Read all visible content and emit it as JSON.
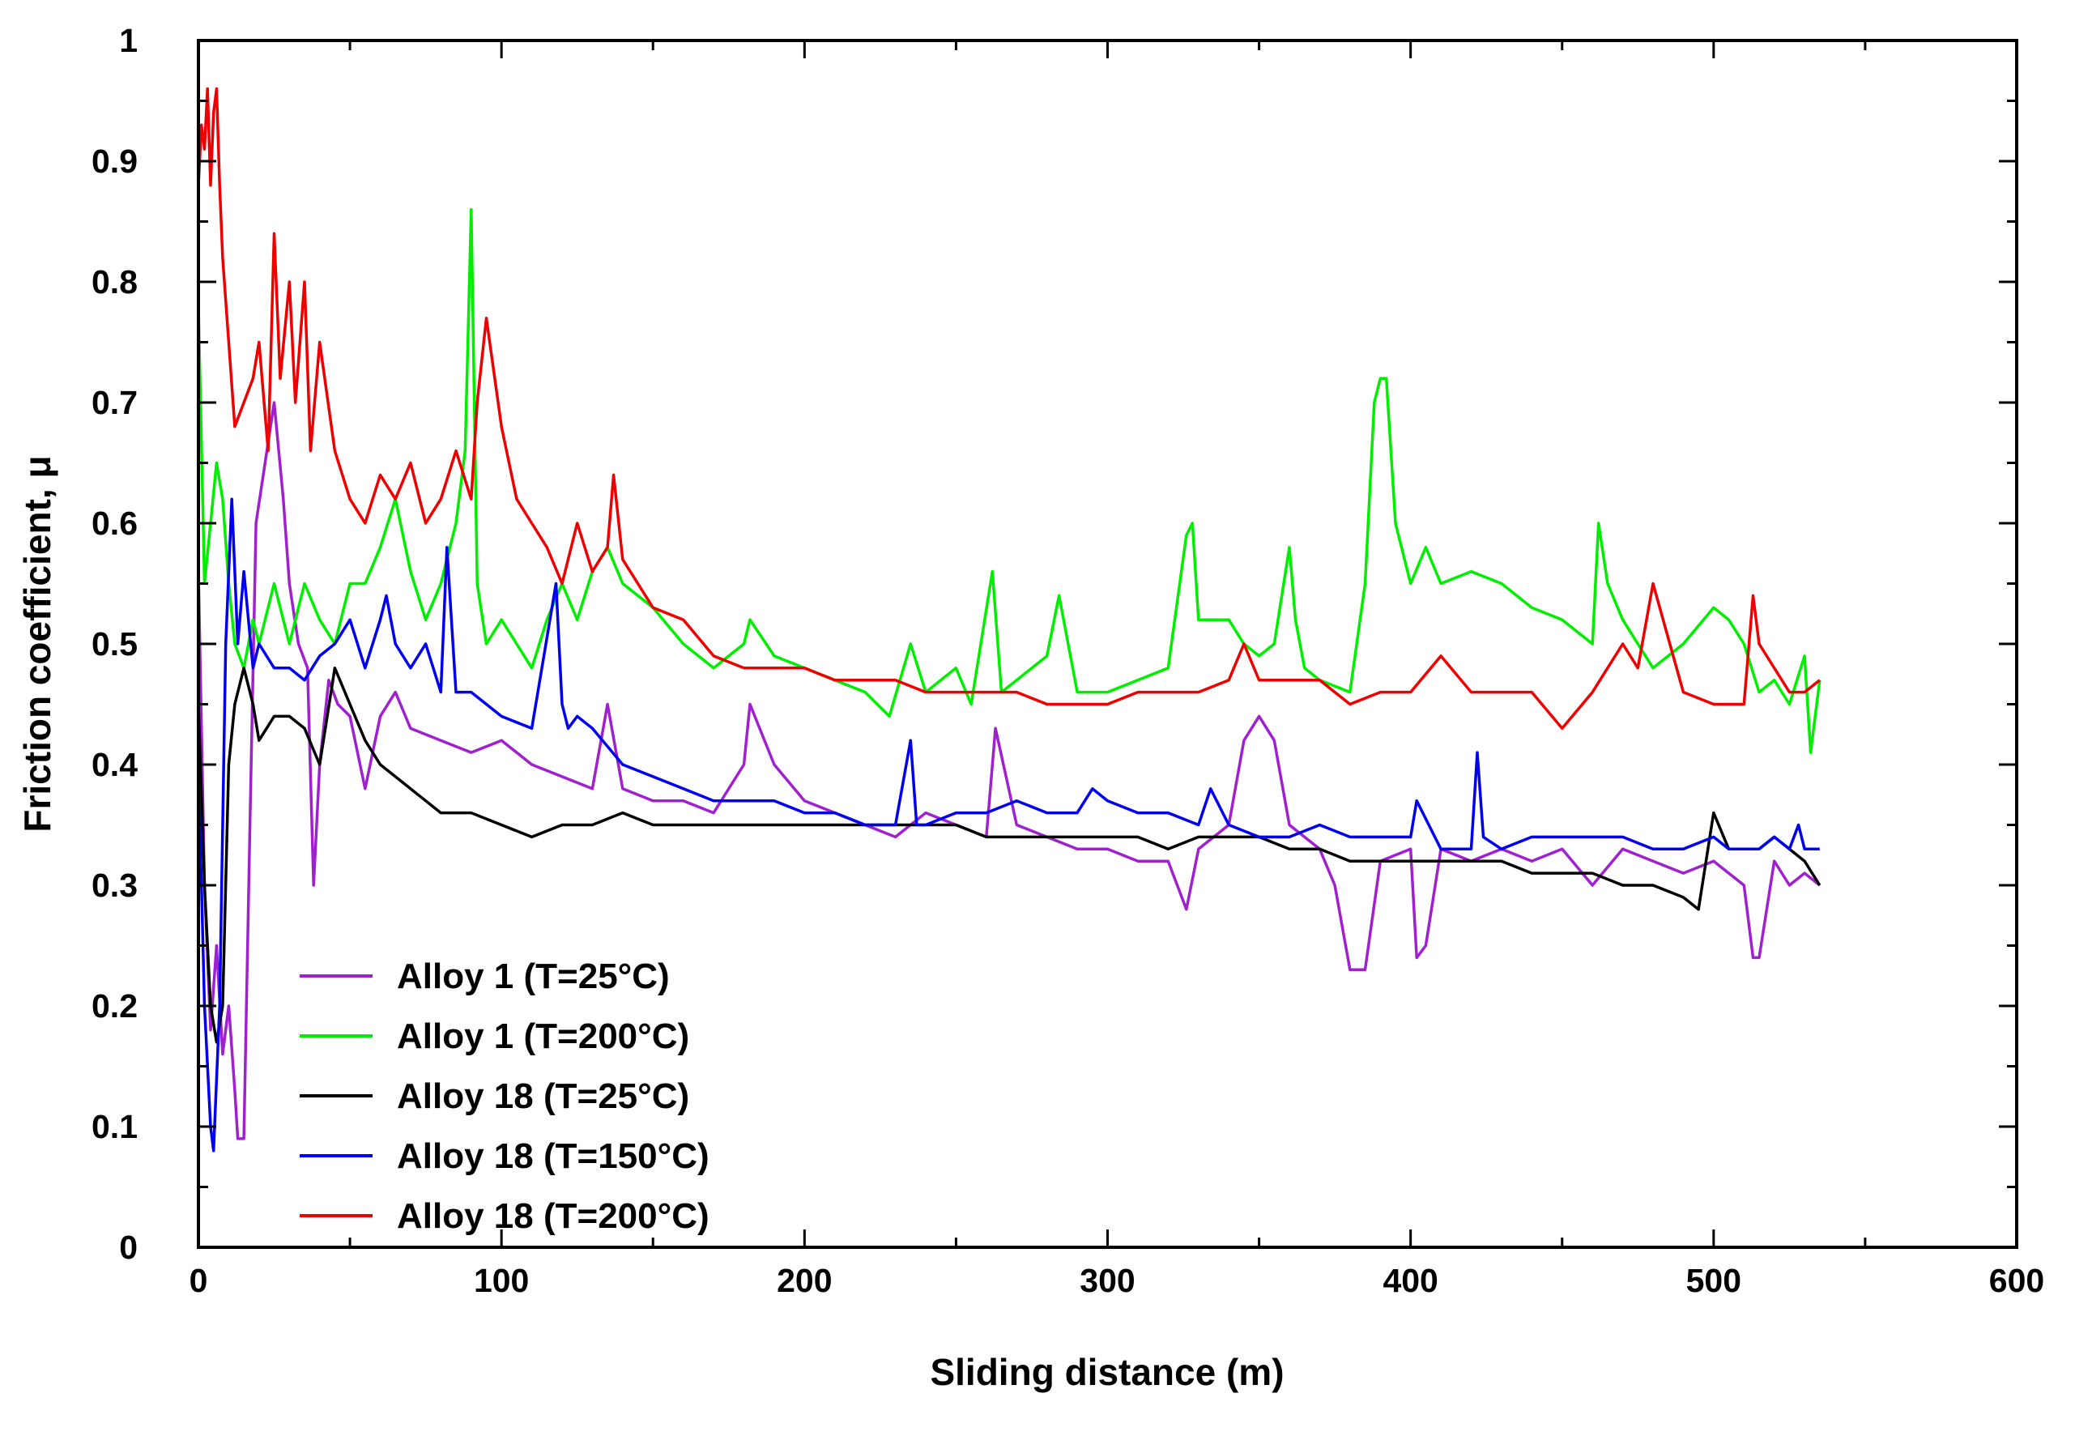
{
  "chart_data": {
    "type": "line",
    "title": "",
    "xlabel": "Sliding distance (m)",
    "ylabel": "Friction coefficient, μ",
    "xlim": [
      0,
      600
    ],
    "ylim": [
      0,
      1
    ],
    "xticks": [
      "0",
      "100",
      "200",
      "300",
      "400",
      "500",
      "600"
    ],
    "yticks": [
      "0",
      "0.1",
      "0.2",
      "0.3",
      "0.4",
      "0.5",
      "0.6",
      "0.7",
      "0.8",
      "0.9",
      "1"
    ],
    "grid": false,
    "legend": "lower-left",
    "series": [
      {
        "name": "Alloy 1 (T=25°C)",
        "color": "#a020d0",
        "x": [
          0,
          2,
          4,
          6,
          8,
          10,
          12,
          13,
          15,
          17,
          19,
          22,
          25,
          28,
          30,
          33,
          36,
          38,
          40,
          43,
          46,
          50,
          55,
          60,
          65,
          70,
          80,
          90,
          100,
          110,
          120,
          130,
          135,
          140,
          150,
          160,
          170,
          180,
          182,
          190,
          200,
          210,
          220,
          230,
          240,
          250,
          260,
          263,
          270,
          280,
          290,
          300,
          310,
          320,
          326,
          330,
          340,
          345,
          350,
          355,
          360,
          370,
          375,
          380,
          385,
          390,
          400,
          402,
          405,
          410,
          420,
          430,
          440,
          450,
          460,
          470,
          480,
          490,
          500,
          505,
          510,
          513,
          515,
          520,
          525,
          530,
          535
        ],
        "y": [
          0.56,
          0.3,
          0.18,
          0.25,
          0.16,
          0.2,
          0.13,
          0.09,
          0.09,
          0.35,
          0.6,
          0.65,
          0.7,
          0.62,
          0.55,
          0.5,
          0.48,
          0.3,
          0.4,
          0.47,
          0.45,
          0.44,
          0.38,
          0.44,
          0.46,
          0.43,
          0.42,
          0.41,
          0.42,
          0.4,
          0.39,
          0.38,
          0.45,
          0.38,
          0.37,
          0.37,
          0.36,
          0.4,
          0.45,
          0.4,
          0.37,
          0.36,
          0.35,
          0.34,
          0.36,
          0.35,
          0.34,
          0.43,
          0.35,
          0.34,
          0.33,
          0.33,
          0.32,
          0.32,
          0.28,
          0.33,
          0.35,
          0.42,
          0.44,
          0.42,
          0.35,
          0.33,
          0.3,
          0.23,
          0.23,
          0.32,
          0.33,
          0.24,
          0.25,
          0.33,
          0.32,
          0.33,
          0.32,
          0.33,
          0.3,
          0.33,
          0.32,
          0.31,
          0.32,
          0.31,
          0.3,
          0.24,
          0.24,
          0.32,
          0.3,
          0.31,
          0.3
        ]
      },
      {
        "name": "Alloy 1 (T=200°C)",
        "color": "#00ee00",
        "x": [
          0,
          2,
          4,
          6,
          8,
          10,
          12,
          15,
          18,
          20,
          25,
          30,
          35,
          40,
          45,
          50,
          55,
          60,
          65,
          70,
          75,
          80,
          85,
          88,
          90,
          92,
          95,
          100,
          105,
          110,
          115,
          120,
          125,
          130,
          135,
          140,
          150,
          160,
          170,
          180,
          182,
          190,
          200,
          210,
          220,
          228,
          235,
          240,
          250,
          255,
          262,
          265,
          270,
          280,
          284,
          290,
          300,
          310,
          320,
          326,
          328,
          330,
          340,
          345,
          350,
          355,
          360,
          362,
          365,
          370,
          380,
          385,
          388,
          390,
          392,
          395,
          400,
          405,
          410,
          420,
          430,
          440,
          450,
          460,
          462,
          465,
          470,
          480,
          490,
          500,
          505,
          510,
          515,
          520,
          525,
          530,
          532,
          535
        ],
        "y": [
          0.78,
          0.55,
          0.6,
          0.65,
          0.62,
          0.55,
          0.5,
          0.48,
          0.52,
          0.5,
          0.55,
          0.5,
          0.55,
          0.52,
          0.5,
          0.55,
          0.55,
          0.58,
          0.62,
          0.56,
          0.52,
          0.55,
          0.6,
          0.66,
          0.86,
          0.55,
          0.5,
          0.52,
          0.5,
          0.48,
          0.52,
          0.55,
          0.52,
          0.56,
          0.58,
          0.55,
          0.53,
          0.5,
          0.48,
          0.5,
          0.52,
          0.49,
          0.48,
          0.47,
          0.46,
          0.44,
          0.5,
          0.46,
          0.48,
          0.45,
          0.56,
          0.46,
          0.47,
          0.49,
          0.54,
          0.46,
          0.46,
          0.47,
          0.48,
          0.59,
          0.6,
          0.52,
          0.52,
          0.5,
          0.49,
          0.5,
          0.58,
          0.52,
          0.48,
          0.47,
          0.46,
          0.55,
          0.7,
          0.72,
          0.72,
          0.6,
          0.55,
          0.58,
          0.55,
          0.56,
          0.55,
          0.53,
          0.52,
          0.5,
          0.6,
          0.55,
          0.52,
          0.48,
          0.5,
          0.53,
          0.52,
          0.5,
          0.46,
          0.47,
          0.45,
          0.49,
          0.41,
          0.47
        ]
      },
      {
        "name": "Alloy 18 (T=25°C)",
        "color": "#000000",
        "x": [
          0,
          2,
          4,
          6,
          8,
          10,
          12,
          15,
          18,
          20,
          25,
          30,
          35,
          40,
          45,
          50,
          55,
          60,
          65,
          70,
          80,
          90,
          100,
          110,
          120,
          130,
          140,
          150,
          160,
          170,
          180,
          190,
          200,
          210,
          220,
          230,
          240,
          250,
          260,
          270,
          280,
          290,
          300,
          310,
          320,
          330,
          340,
          350,
          360,
          370,
          380,
          390,
          400,
          410,
          420,
          430,
          440,
          450,
          460,
          470,
          480,
          490,
          495,
          500,
          505,
          510,
          515,
          520,
          525,
          530,
          535
        ],
        "y": [
          0.45,
          0.3,
          0.2,
          0.17,
          0.2,
          0.4,
          0.45,
          0.48,
          0.45,
          0.42,
          0.44,
          0.44,
          0.43,
          0.4,
          0.48,
          0.45,
          0.42,
          0.4,
          0.39,
          0.38,
          0.36,
          0.36,
          0.35,
          0.34,
          0.35,
          0.35,
          0.36,
          0.35,
          0.35,
          0.35,
          0.35,
          0.35,
          0.35,
          0.35,
          0.35,
          0.35,
          0.35,
          0.35,
          0.34,
          0.34,
          0.34,
          0.34,
          0.34,
          0.34,
          0.33,
          0.34,
          0.34,
          0.34,
          0.33,
          0.33,
          0.32,
          0.32,
          0.32,
          0.32,
          0.32,
          0.32,
          0.31,
          0.31,
          0.31,
          0.3,
          0.3,
          0.29,
          0.28,
          0.36,
          0.33,
          0.33,
          0.33,
          0.34,
          0.33,
          0.32,
          0.3
        ]
      },
      {
        "name": "Alloy 18 (T=150°C)",
        "color": "#0000ee",
        "x": [
          0,
          2,
          4,
          5,
          7,
          9,
          11,
          13,
          15,
          18,
          20,
          25,
          30,
          35,
          40,
          45,
          50,
          55,
          60,
          62,
          65,
          70,
          75,
          80,
          82,
          85,
          90,
          100,
          110,
          118,
          120,
          122,
          125,
          130,
          140,
          150,
          160,
          170,
          180,
          190,
          200,
          210,
          220,
          230,
          235,
          237,
          240,
          250,
          260,
          270,
          280,
          290,
          295,
          300,
          310,
          320,
          330,
          334,
          340,
          350,
          360,
          370,
          380,
          390,
          400,
          402,
          410,
          420,
          422,
          424,
          430,
          440,
          450,
          460,
          470,
          480,
          490,
          500,
          505,
          510,
          515,
          520,
          525,
          528,
          530,
          535
        ],
        "y": [
          0.4,
          0.2,
          0.1,
          0.08,
          0.2,
          0.5,
          0.62,
          0.5,
          0.56,
          0.48,
          0.5,
          0.48,
          0.48,
          0.47,
          0.49,
          0.5,
          0.52,
          0.48,
          0.52,
          0.54,
          0.5,
          0.48,
          0.5,
          0.46,
          0.58,
          0.46,
          0.46,
          0.44,
          0.43,
          0.55,
          0.45,
          0.43,
          0.44,
          0.43,
          0.4,
          0.39,
          0.38,
          0.37,
          0.37,
          0.37,
          0.36,
          0.36,
          0.35,
          0.35,
          0.42,
          0.35,
          0.35,
          0.36,
          0.36,
          0.37,
          0.36,
          0.36,
          0.38,
          0.37,
          0.36,
          0.36,
          0.35,
          0.38,
          0.35,
          0.34,
          0.34,
          0.35,
          0.34,
          0.34,
          0.34,
          0.37,
          0.33,
          0.33,
          0.41,
          0.34,
          0.33,
          0.34,
          0.34,
          0.34,
          0.34,
          0.33,
          0.33,
          0.34,
          0.33,
          0.33,
          0.33,
          0.34,
          0.33,
          0.35,
          0.33,
          0.33
        ]
      },
      {
        "name": "Alloy 18 (T=200°C)",
        "color": "#ee0000",
        "x": [
          0,
          1,
          2,
          3,
          4,
          5,
          6,
          7,
          8,
          10,
          12,
          15,
          18,
          20,
          23,
          25,
          27,
          30,
          32,
          35,
          37,
          40,
          45,
          50,
          55,
          60,
          65,
          70,
          75,
          80,
          85,
          90,
          92,
          95,
          100,
          105,
          110,
          115,
          120,
          125,
          130,
          135,
          137,
          140,
          150,
          160,
          170,
          180,
          190,
          200,
          210,
          220,
          230,
          240,
          250,
          260,
          270,
          280,
          290,
          300,
          310,
          320,
          330,
          340,
          345,
          350,
          360,
          370,
          380,
          390,
          400,
          410,
          420,
          430,
          440,
          450,
          460,
          470,
          475,
          480,
          490,
          500,
          510,
          513,
          515,
          520,
          525,
          530,
          535
        ],
        "y": [
          0.88,
          0.93,
          0.91,
          0.96,
          0.88,
          0.94,
          0.96,
          0.88,
          0.82,
          0.75,
          0.68,
          0.7,
          0.72,
          0.75,
          0.66,
          0.84,
          0.72,
          0.8,
          0.7,
          0.8,
          0.66,
          0.75,
          0.66,
          0.62,
          0.6,
          0.64,
          0.62,
          0.65,
          0.6,
          0.62,
          0.66,
          0.62,
          0.7,
          0.77,
          0.68,
          0.62,
          0.6,
          0.58,
          0.55,
          0.6,
          0.56,
          0.58,
          0.64,
          0.57,
          0.53,
          0.52,
          0.49,
          0.48,
          0.48,
          0.48,
          0.47,
          0.47,
          0.47,
          0.46,
          0.46,
          0.46,
          0.46,
          0.45,
          0.45,
          0.45,
          0.46,
          0.46,
          0.46,
          0.47,
          0.5,
          0.47,
          0.47,
          0.47,
          0.45,
          0.46,
          0.46,
          0.49,
          0.46,
          0.46,
          0.46,
          0.43,
          0.46,
          0.5,
          0.48,
          0.55,
          0.46,
          0.45,
          0.45,
          0.54,
          0.5,
          0.48,
          0.46,
          0.46,
          0.47
        ]
      }
    ]
  }
}
